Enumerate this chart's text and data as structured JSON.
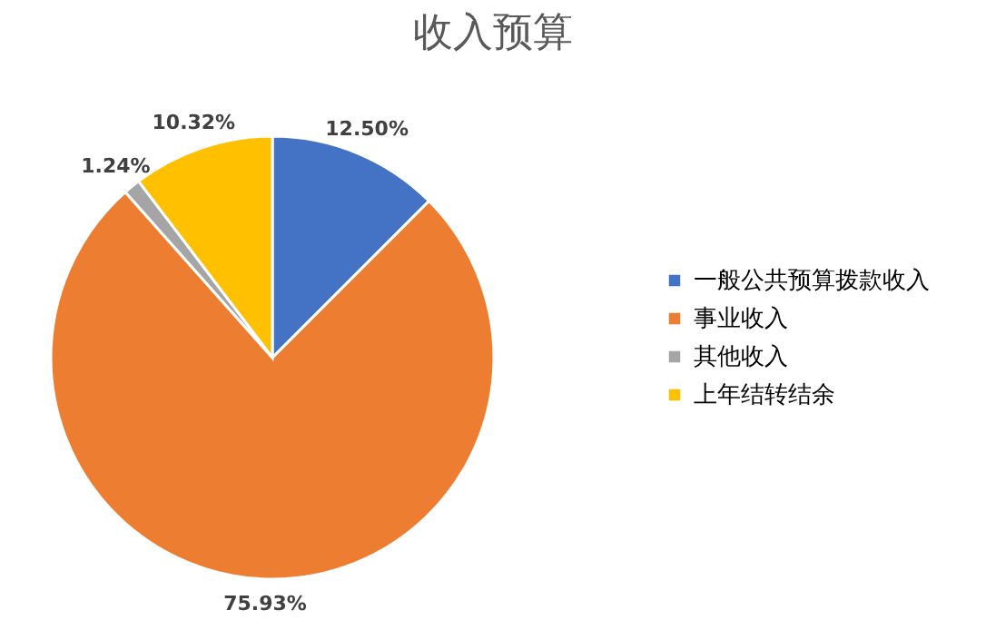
{
  "chart_data": {
    "type": "pie",
    "title": "收入预算",
    "categories": [
      "一般公共预算拨款收入",
      "事业收入",
      "其他收入",
      "上年结转结余"
    ],
    "values": [
      12.5,
      75.93,
      1.24,
      10.32
    ],
    "colors": [
      "#4472c4",
      "#ed7d31",
      "#a5a5a5",
      "#ffc000"
    ],
    "value_labels": [
      "12.50%",
      "75.93%",
      "1.24%",
      "10.32%"
    ],
    "legend": "right"
  }
}
